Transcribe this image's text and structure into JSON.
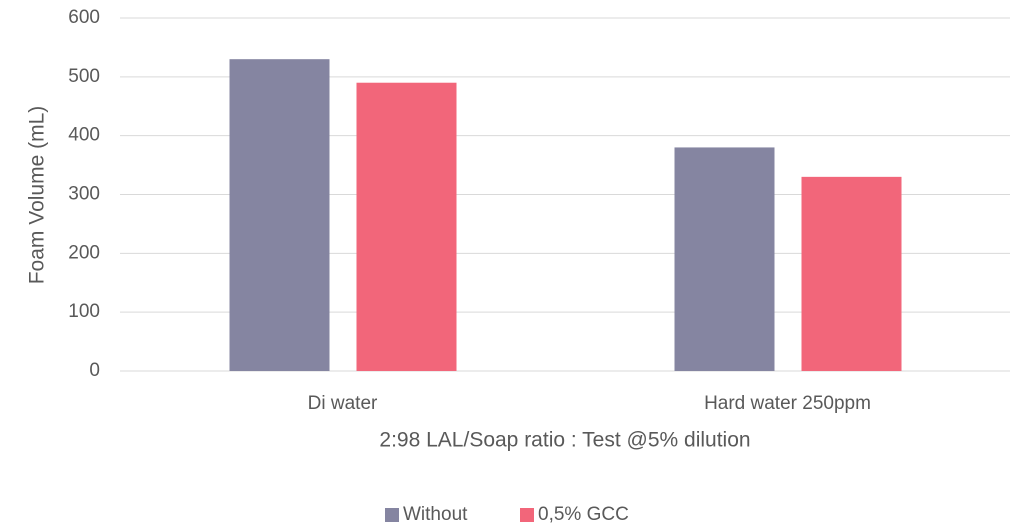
{
  "chart_data": {
    "type": "bar",
    "x_label": "2:98 LAL/Soap ratio : Test @5% dilution",
    "y_label": "Foam Volume (mL)",
    "categories": [
      "Di water",
      "Hard water 250ppm"
    ],
    "series": [
      {
        "name": "Without",
        "color": "#8585a1",
        "values": [
          530,
          380
        ]
      },
      {
        "name": "0,5% GCC",
        "color": "#f2667a",
        "values": [
          490,
          330
        ]
      }
    ],
    "ylim": [
      0,
      600
    ],
    "yticks": [
      0,
      100,
      200,
      300,
      400,
      500,
      600
    ],
    "grid": true,
    "legend": "bottom"
  }
}
